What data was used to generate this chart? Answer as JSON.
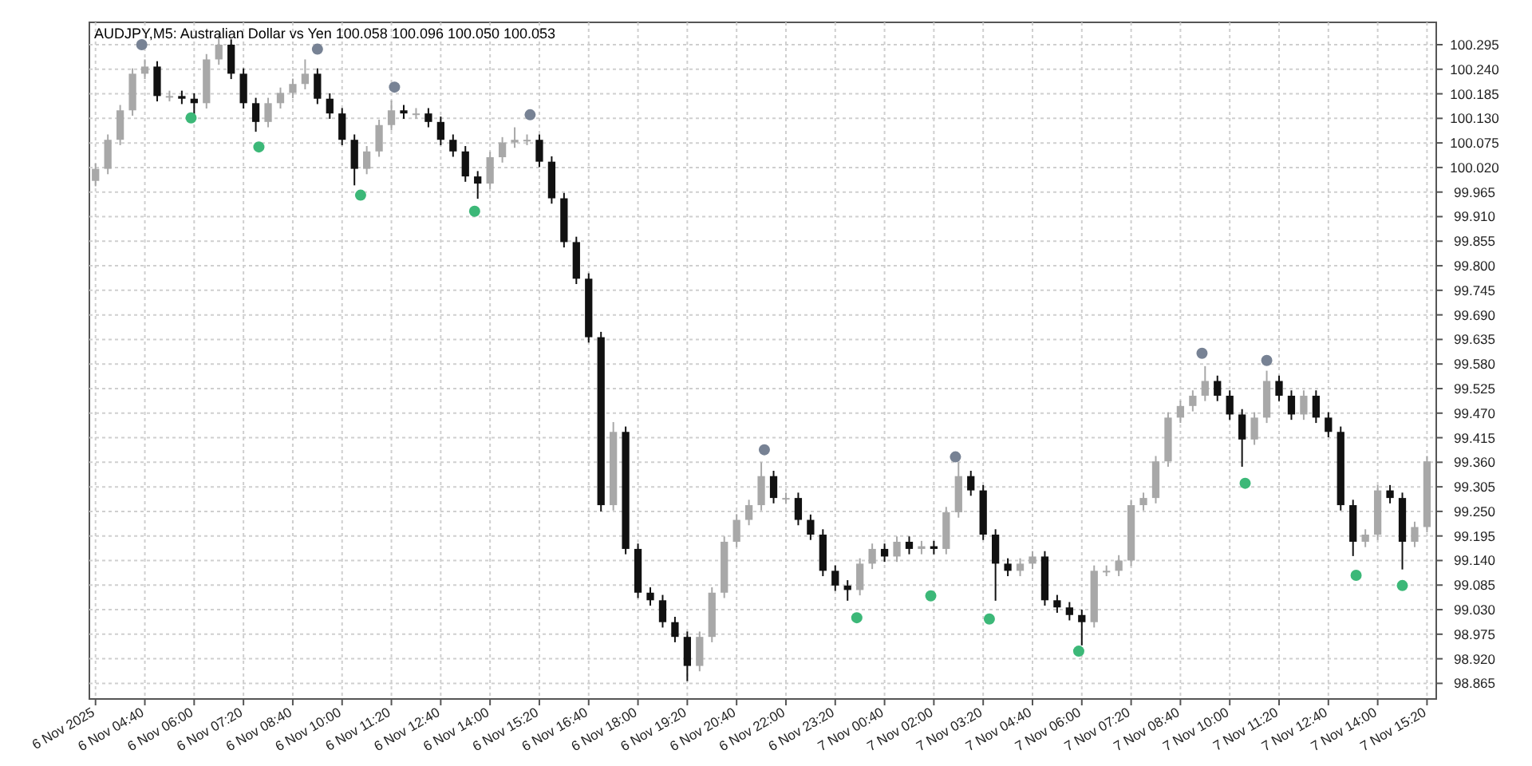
{
  "chart_data": {
    "type": "candlestick",
    "title": "AUDJPY,M5: Australian Dollar vs Yen 100.058 100.096 100.050 100.053",
    "x": [
      "2025-11-06T03:20",
      "2025-11-06T03:40",
      "2025-11-06T04:00",
      "2025-11-06T04:20",
      "2025-11-06T04:40",
      "2025-11-06T05:00",
      "2025-11-06T05:20",
      "2025-11-06T05:40",
      "2025-11-06T06:00",
      "2025-11-06T06:20",
      "2025-11-06T06:40",
      "2025-11-06T07:00",
      "2025-11-06T07:20",
      "2025-11-06T07:40",
      "2025-11-06T08:00",
      "2025-11-06T08:20",
      "2025-11-06T08:40",
      "2025-11-06T09:00",
      "2025-11-06T09:20",
      "2025-11-06T09:40",
      "2025-11-06T10:00",
      "2025-11-06T10:20",
      "2025-11-06T10:40",
      "2025-11-06T11:00",
      "2025-11-06T11:20",
      "2025-11-06T11:40",
      "2025-11-06T12:00",
      "2025-11-06T12:20",
      "2025-11-06T12:40",
      "2025-11-06T13:00",
      "2025-11-06T13:20",
      "2025-11-06T13:40",
      "2025-11-06T14:00",
      "2025-11-06T14:20",
      "2025-11-06T14:40",
      "2025-11-06T15:00",
      "2025-11-06T15:20",
      "2025-11-06T15:40",
      "2025-11-06T16:00",
      "2025-11-06T16:20",
      "2025-11-06T16:40",
      "2025-11-06T17:00",
      "2025-11-06T17:20",
      "2025-11-06T17:40",
      "2025-11-06T18:00",
      "2025-11-06T18:20",
      "2025-11-06T18:40",
      "2025-11-06T19:00",
      "2025-11-06T19:20",
      "2025-11-06T19:40",
      "2025-11-06T20:00",
      "2025-11-06T20:20",
      "2025-11-06T20:40",
      "2025-11-06T21:00",
      "2025-11-06T21:20",
      "2025-11-06T21:40",
      "2025-11-06T22:00",
      "2025-11-06T22:20",
      "2025-11-06T22:40",
      "2025-11-06T23:00",
      "2025-11-06T23:20",
      "2025-11-06T23:40",
      "2025-11-07T00:00",
      "2025-11-07T00:20",
      "2025-11-07T00:40",
      "2025-11-07T01:00",
      "2025-11-07T01:20",
      "2025-11-07T01:40",
      "2025-11-07T02:00",
      "2025-11-07T02:20",
      "2025-11-07T02:40",
      "2025-11-07T03:00",
      "2025-11-07T03:20",
      "2025-11-07T03:40",
      "2025-11-07T04:00",
      "2025-11-07T04:20",
      "2025-11-07T04:40",
      "2025-11-07T05:00",
      "2025-11-07T05:20",
      "2025-11-07T05:40",
      "2025-11-07T06:00",
      "2025-11-07T06:20",
      "2025-11-07T06:40",
      "2025-11-07T07:00",
      "2025-11-07T07:20",
      "2025-11-07T07:40",
      "2025-11-07T08:00",
      "2025-11-07T08:20",
      "2025-11-07T08:40",
      "2025-11-07T09:00",
      "2025-11-07T09:20",
      "2025-11-07T09:40",
      "2025-11-07T10:00",
      "2025-11-07T10:20",
      "2025-11-07T10:40",
      "2025-11-07T11:00",
      "2025-11-07T11:20",
      "2025-11-07T11:40",
      "2025-11-07T12:00",
      "2025-11-07T12:20",
      "2025-11-07T12:40",
      "2025-11-07T13:00",
      "2025-11-07T13:20",
      "2025-11-07T13:40",
      "2025-11-07T14:00",
      "2025-11-07T14:20",
      "2025-11-07T14:40",
      "2025-11-07T15:00",
      "2025-11-07T15:20"
    ],
    "ohlc": [
      [
        99.99,
        100.029,
        99.978,
        100.017
      ],
      [
        100.017,
        100.094,
        100.005,
        100.082
      ],
      [
        100.082,
        100.16,
        100.07,
        100.148
      ],
      [
        100.148,
        100.242,
        100.136,
        100.23
      ],
      [
        100.23,
        100.262,
        100.218,
        100.246
      ],
      [
        100.246,
        100.258,
        100.168,
        100.18
      ],
      [
        100.18,
        100.192,
        100.168,
        100.18
      ],
      [
        100.18,
        100.192,
        100.162,
        100.174
      ],
      [
        100.174,
        100.186,
        100.14,
        100.164
      ],
      [
        100.164,
        100.274,
        100.152,
        100.262
      ],
      [
        100.262,
        100.318,
        100.25,
        100.295
      ],
      [
        100.295,
        100.307,
        100.218,
        100.23
      ],
      [
        100.23,
        100.242,
        100.152,
        100.164
      ],
      [
        100.164,
        100.176,
        100.1,
        100.122
      ],
      [
        100.122,
        100.176,
        100.11,
        100.164
      ],
      [
        100.164,
        100.199,
        100.152,
        100.187
      ],
      [
        100.187,
        100.219,
        100.175,
        100.207
      ],
      [
        100.207,
        100.262,
        100.195,
        100.23
      ],
      [
        100.23,
        100.242,
        100.162,
        100.174
      ],
      [
        100.174,
        100.186,
        100.129,
        100.141
      ],
      [
        100.141,
        100.153,
        100.07,
        100.082
      ],
      [
        100.082,
        100.094,
        99.98,
        100.017
      ],
      [
        100.017,
        100.068,
        100.005,
        100.056
      ],
      [
        100.056,
        100.127,
        100.044,
        100.115
      ],
      [
        100.115,
        100.17,
        100.103,
        100.148
      ],
      [
        100.148,
        100.16,
        100.129,
        100.141
      ],
      [
        100.141,
        100.153,
        100.129,
        100.141
      ],
      [
        100.141,
        100.153,
        100.11,
        100.122
      ],
      [
        100.122,
        100.134,
        100.07,
        100.082
      ],
      [
        100.082,
        100.094,
        100.044,
        100.056
      ],
      [
        100.056,
        100.068,
        99.988,
        100.0
      ],
      [
        100.0,
        100.012,
        99.95,
        99.984
      ],
      [
        99.984,
        100.055,
        99.972,
        100.043
      ],
      [
        100.043,
        100.088,
        100.031,
        100.076
      ],
      [
        100.076,
        100.11,
        100.064,
        100.082
      ],
      [
        100.082,
        100.094,
        100.07,
        100.082
      ],
      [
        100.082,
        100.094,
        100.021,
        100.033
      ],
      [
        100.033,
        100.045,
        99.939,
        99.951
      ],
      [
        99.951,
        99.963,
        99.841,
        99.853
      ],
      [
        99.853,
        99.865,
        99.759,
        99.771
      ],
      [
        99.771,
        99.783,
        99.628,
        99.64
      ],
      [
        99.64,
        99.652,
        99.25,
        99.264
      ],
      [
        99.264,
        99.45,
        99.252,
        99.428
      ],
      [
        99.428,
        99.44,
        99.154,
        99.166
      ],
      [
        99.166,
        99.178,
        99.056,
        99.068
      ],
      [
        99.068,
        99.08,
        99.039,
        99.051
      ],
      [
        99.051,
        99.063,
        98.99,
        99.002
      ],
      [
        99.002,
        99.014,
        98.957,
        98.969
      ],
      [
        98.969,
        98.981,
        98.87,
        98.904
      ],
      [
        98.904,
        98.981,
        98.892,
        98.969
      ],
      [
        98.969,
        99.08,
        98.957,
        99.068
      ],
      [
        99.068,
        99.194,
        99.056,
        99.182
      ],
      [
        99.182,
        99.243,
        99.17,
        99.231
      ],
      [
        99.231,
        99.276,
        99.219,
        99.264
      ],
      [
        99.264,
        99.36,
        99.252,
        99.329
      ],
      [
        99.329,
        99.341,
        99.268,
        99.28
      ],
      [
        99.28,
        99.292,
        99.268,
        99.28
      ],
      [
        99.28,
        99.292,
        99.219,
        99.231
      ],
      [
        99.231,
        99.243,
        99.186,
        99.198
      ],
      [
        99.198,
        99.21,
        99.105,
        99.117
      ],
      [
        99.117,
        99.129,
        99.072,
        99.084
      ],
      [
        99.084,
        99.096,
        99.05,
        99.074
      ],
      [
        99.074,
        99.145,
        99.062,
        99.133
      ],
      [
        99.133,
        99.178,
        99.121,
        99.166
      ],
      [
        99.166,
        99.178,
        99.137,
        99.149
      ],
      [
        99.149,
        99.194,
        99.137,
        99.182
      ],
      [
        99.182,
        99.194,
        99.154,
        99.166
      ],
      [
        99.166,
        99.184,
        99.154,
        99.172
      ],
      [
        99.172,
        99.184,
        99.154,
        99.166
      ],
      [
        99.166,
        99.26,
        99.154,
        99.248
      ],
      [
        99.248,
        99.36,
        99.236,
        99.329
      ],
      [
        99.329,
        99.341,
        99.285,
        99.297
      ],
      [
        99.297,
        99.309,
        99.186,
        99.198
      ],
      [
        99.198,
        99.21,
        99.05,
        99.133
      ],
      [
        99.133,
        99.145,
        99.105,
        99.117
      ],
      [
        99.117,
        99.145,
        99.105,
        99.133
      ],
      [
        99.133,
        99.161,
        99.121,
        99.149
      ],
      [
        99.149,
        99.161,
        99.039,
        99.051
      ],
      [
        99.051,
        99.063,
        99.023,
        99.035
      ],
      [
        99.035,
        99.047,
        99.006,
        99.018
      ],
      [
        99.018,
        99.03,
        98.95,
        99.002
      ],
      [
        99.002,
        99.129,
        98.99,
        99.117
      ],
      [
        99.117,
        99.129,
        99.105,
        99.117
      ],
      [
        99.117,
        99.152,
        99.105,
        99.14
      ],
      [
        99.14,
        99.276,
        99.128,
        99.264
      ],
      [
        99.264,
        99.292,
        99.252,
        99.28
      ],
      [
        99.28,
        99.374,
        99.268,
        99.362
      ],
      [
        99.362,
        99.472,
        99.35,
        99.46
      ],
      [
        99.46,
        99.498,
        99.448,
        99.486
      ],
      [
        99.486,
        99.521,
        99.474,
        99.509
      ],
      [
        99.509,
        99.575,
        99.497,
        99.542
      ],
      [
        99.542,
        99.554,
        99.497,
        99.509
      ],
      [
        99.509,
        99.521,
        99.455,
        99.467
      ],
      [
        99.467,
        99.479,
        99.35,
        99.411
      ],
      [
        99.411,
        99.472,
        99.399,
        99.46
      ],
      [
        99.46,
        99.565,
        99.448,
        99.542
      ],
      [
        99.542,
        99.554,
        99.497,
        99.509
      ],
      [
        99.509,
        99.521,
        99.455,
        99.467
      ],
      [
        99.467,
        99.521,
        99.455,
        99.509
      ],
      [
        99.509,
        99.521,
        99.448,
        99.46
      ],
      [
        99.46,
        99.472,
        99.416,
        99.428
      ],
      [
        99.428,
        99.44,
        99.252,
        99.264
      ],
      [
        99.264,
        99.276,
        99.15,
        99.182
      ],
      [
        99.182,
        99.21,
        99.17,
        99.198
      ],
      [
        99.198,
        99.309,
        99.186,
        99.297
      ],
      [
        99.297,
        99.309,
        99.268,
        99.28
      ],
      [
        99.28,
        99.292,
        99.12,
        99.182
      ],
      [
        99.182,
        99.227,
        99.17,
        99.215
      ],
      [
        99.215,
        99.374,
        99.203,
        99.362
      ]
    ],
    "series": [
      {
        "type": "scatter",
        "color": "#778294",
        "x": [
          "2025-11-06T04:35",
          "2025-11-06T09:20",
          "2025-11-06T11:25",
          "2025-11-06T15:05",
          "2025-11-06T21:25",
          "2025-11-07T02:35",
          "2025-11-07T09:15",
          "2025-11-07T11:00"
        ],
        "values": [
          100.295,
          100.285,
          100.2,
          100.138,
          99.388,
          99.372,
          99.604,
          99.588
        ]
      },
      {
        "type": "scatter",
        "color": "#3cb878",
        "x": [
          "2025-11-06T05:55",
          "2025-11-06T07:45",
          "2025-11-06T10:30",
          "2025-11-06T13:35",
          "2025-11-06T23:55",
          "2025-11-07T01:55",
          "2025-11-07T03:30",
          "2025-11-07T05:55",
          "2025-11-07T10:25",
          "2025-11-07T13:25",
          "2025-11-07T14:40"
        ],
        "values": [
          100.131,
          100.066,
          99.958,
          99.922,
          99.012,
          99.061,
          99.009,
          98.937,
          99.313,
          99.107,
          99.084
        ]
      }
    ],
    "marker": "circle",
    "grid": true,
    "xlim": [
      "2025-11-06T03:10",
      "2025-11-07T15:35"
    ],
    "xticks": [
      {
        "value": "2025-11-06T03:20",
        "label": "6 Nov 2025"
      },
      {
        "value": "2025-11-06T04:40",
        "label": "6 Nov 04:40"
      },
      {
        "value": "2025-11-06T06:00",
        "label": "6 Nov 06:00"
      },
      {
        "value": "2025-11-06T07:20",
        "label": "6 Nov 07:20"
      },
      {
        "value": "2025-11-06T08:40",
        "label": "6 Nov 08:40"
      },
      {
        "value": "2025-11-06T10:00",
        "label": "6 Nov 10:00"
      },
      {
        "value": "2025-11-06T11:20",
        "label": "6 Nov 11:20"
      },
      {
        "value": "2025-11-06T12:40",
        "label": "6 Nov 12:40"
      },
      {
        "value": "2025-11-06T14:00",
        "label": "6 Nov 14:00"
      },
      {
        "value": "2025-11-06T15:20",
        "label": "6 Nov 15:20"
      },
      {
        "value": "2025-11-06T16:40",
        "label": "6 Nov 16:40"
      },
      {
        "value": "2025-11-06T18:00",
        "label": "6 Nov 18:00"
      },
      {
        "value": "2025-11-06T19:20",
        "label": "6 Nov 19:20"
      },
      {
        "value": "2025-11-06T20:40",
        "label": "6 Nov 20:40"
      },
      {
        "value": "2025-11-06T22:00",
        "label": "6 Nov 22:00"
      },
      {
        "value": "2025-11-06T23:20",
        "label": "6 Nov 23:20"
      },
      {
        "value": "2025-11-07T00:40",
        "label": "7 Nov 00:40"
      },
      {
        "value": "2025-11-07T02:00",
        "label": "7 Nov 02:00"
      },
      {
        "value": "2025-11-07T03:20",
        "label": "7 Nov 03:20"
      },
      {
        "value": "2025-11-07T04:40",
        "label": "7 Nov 04:40"
      },
      {
        "value": "2025-11-07T06:00",
        "label": "7 Nov 06:00"
      },
      {
        "value": "2025-11-07T07:20",
        "label": "7 Nov 07:20"
      },
      {
        "value": "2025-11-07T08:40",
        "label": "7 Nov 08:40"
      },
      {
        "value": "2025-11-07T10:00",
        "label": "7 Nov 10:00"
      },
      {
        "value": "2025-11-07T11:20",
        "label": "7 Nov 11:20"
      },
      {
        "value": "2025-11-07T12:40",
        "label": "7 Nov 12:40"
      },
      {
        "value": "2025-11-07T14:00",
        "label": "7 Nov 14:00"
      },
      {
        "value": "2025-11-07T15:20",
        "label": "7 Nov 15:20"
      }
    ],
    "ylim": [
      98.83,
      100.345
    ],
    "yticks": [
      {
        "value": 100.295,
        "label": "100.295"
      },
      {
        "value": 100.24,
        "label": "100.240"
      },
      {
        "value": 100.185,
        "label": "100.185"
      },
      {
        "value": 100.13,
        "label": "100.130"
      },
      {
        "value": 100.075,
        "label": "100.075"
      },
      {
        "value": 100.02,
        "label": "100.020"
      },
      99.965,
      {
        "value": 99.91,
        "label": "99.910"
      },
      99.855,
      {
        "value": 99.8,
        "label": "99.800"
      },
      99.745,
      {
        "value": 99.69,
        "label": "99.690"
      },
      99.635,
      {
        "value": 99.58,
        "label": "99.580"
      },
      99.525,
      {
        "value": 99.47,
        "label": "99.470"
      },
      99.415,
      {
        "value": 99.36,
        "label": "99.360"
      },
      99.305,
      {
        "value": 99.25,
        "label": "99.250"
      },
      99.195,
      {
        "value": 99.14,
        "label": "99.140"
      },
      99.085,
      {
        "value": 99.03,
        "label": "99.030"
      },
      98.975,
      {
        "value": 98.92,
        "label": "98.920"
      },
      98.865
    ]
  }
}
